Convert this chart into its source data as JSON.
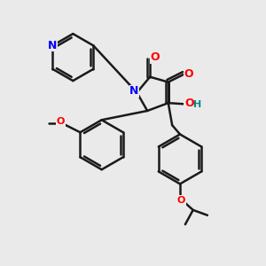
{
  "bg_color": "#eaeaea",
  "bond_color": "#1a1a1a",
  "N_color": "#0000ff",
  "O_color": "#ff0000",
  "OH_color": "#008b8b",
  "line_width": 1.8,
  "figsize": [
    3.0,
    3.0
  ],
  "dpi": 100,
  "xlim": [
    0,
    10
  ],
  "ylim": [
    0,
    10
  ]
}
